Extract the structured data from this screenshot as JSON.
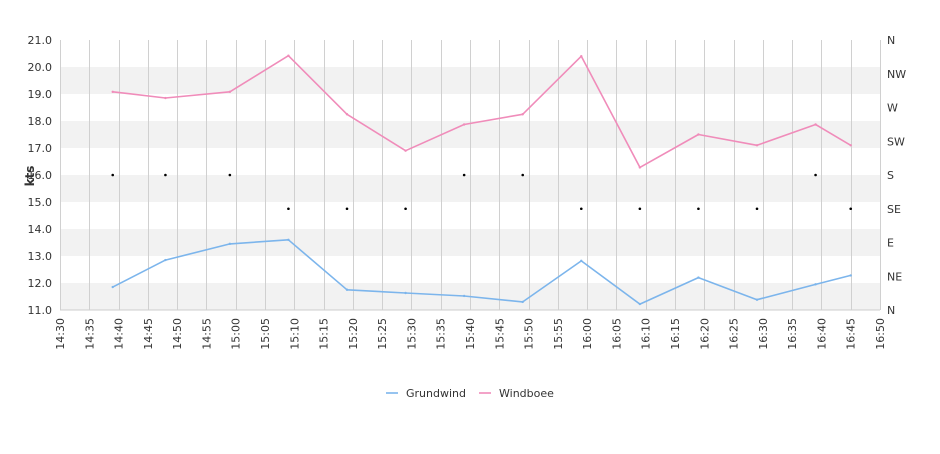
{
  "chart_data": {
    "type": "line",
    "ylabel": "kts",
    "ylim": [
      11.0,
      21.0
    ],
    "y_ticks": [
      "11.0",
      "12.0",
      "13.0",
      "14.0",
      "15.0",
      "16.0",
      "17.0",
      "18.0",
      "19.0",
      "20.0",
      "21.0"
    ],
    "x_ticks": [
      "14:30",
      "14:35",
      "14:40",
      "14:45",
      "14:50",
      "14:55",
      "15:00",
      "15:05",
      "15:10",
      "15:15",
      "15:20",
      "15:25",
      "15:30",
      "15:35",
      "15:40",
      "15:45",
      "15:50",
      "15:55",
      "16:00",
      "16:05",
      "16:10",
      "16:15",
      "16:20",
      "16:25",
      "16:30",
      "16:35",
      "16:40",
      "16:45",
      "16:50"
    ],
    "x_range": [
      "14:30",
      "16:50"
    ],
    "direction_axis": {
      "labels": [
        "N",
        "NE",
        "E",
        "SE",
        "S",
        "SW",
        "W",
        "NW",
        "N"
      ]
    },
    "grid": true,
    "legend_position": "bottom-center",
    "series": [
      {
        "name": "Grundwind",
        "color": "#7cb5ec",
        "x": [
          "14:39",
          "14:48",
          "14:59",
          "15:09",
          "15:19",
          "15:29",
          "15:39",
          "15:49",
          "15:59",
          "16:09",
          "16:19",
          "16:29",
          "16:39",
          "16:45"
        ],
        "values": [
          11.85,
          12.85,
          13.45,
          13.6,
          11.75,
          11.63,
          11.52,
          11.3,
          12.82,
          11.22,
          12.2,
          11.38,
          11.95,
          12.28
        ]
      },
      {
        "name": "Windboee",
        "color": "#f08cba",
        "x": [
          "14:39",
          "14:48",
          "14:59",
          "15:09",
          "15:19",
          "15:29",
          "15:39",
          "15:49",
          "15:59",
          "16:09",
          "16:19",
          "16:29",
          "16:39",
          "16:45"
        ],
        "values": [
          19.08,
          18.85,
          19.08,
          20.42,
          18.25,
          16.9,
          17.87,
          18.25,
          20.4,
          16.28,
          17.5,
          17.1,
          17.87,
          17.1
        ]
      }
    ],
    "direction_points": {
      "x": [
        "14:39",
        "14:48",
        "14:59",
        "15:09",
        "15:19",
        "15:29",
        "15:39",
        "15:49",
        "15:59",
        "16:09",
        "16:19",
        "16:29",
        "16:39",
        "16:45"
      ],
      "values": [
        "S",
        "S",
        "S",
        "SE",
        "SE",
        "SE",
        "S",
        "S",
        "SE",
        "SE",
        "SE",
        "SE",
        "S",
        "SE"
      ]
    }
  }
}
